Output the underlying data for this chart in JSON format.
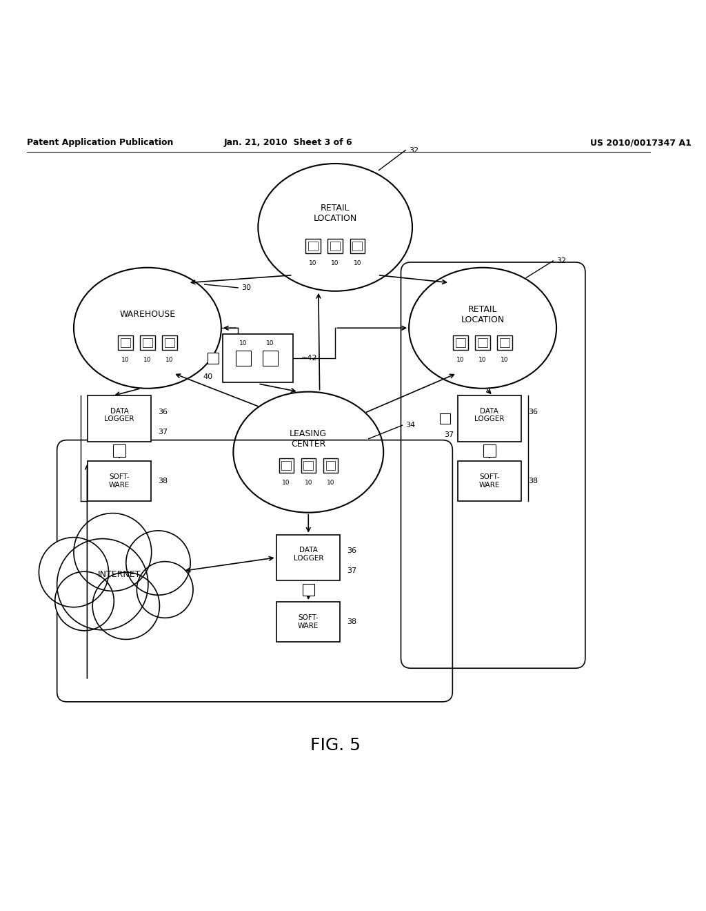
{
  "title": "FIG. 5",
  "header_left": "Patent Application Publication",
  "header_center": "Jan. 21, 2010  Sheet 3 of 6",
  "header_right": "US 2010/0017347 A1",
  "bg_color": "#ffffff",
  "font_size_node": 9,
  "font_size_label": 8,
  "font_size_header": 9,
  "font_size_title": 18
}
